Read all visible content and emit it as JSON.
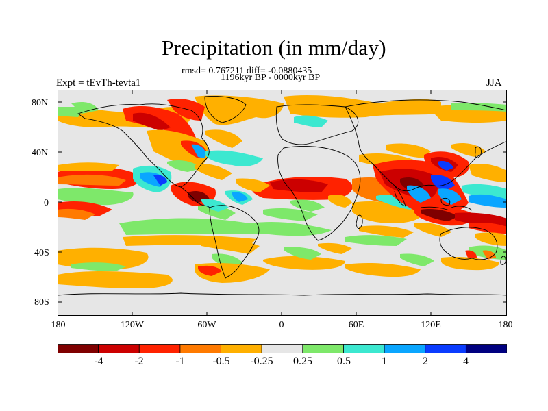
{
  "figure": {
    "title": "Precipitation (in mm/day)",
    "stats_line": "rmsd= 0.767211 diff= -0.0880435",
    "period_line": "1196kyr BP - 0000kyr BP",
    "experiment": "Expt = tEvTh-tevta1",
    "season": "JJA"
  },
  "axes": {
    "lat_ticks": [
      "80N",
      "40N",
      "0",
      "40S",
      "80S"
    ],
    "lon_ticks": [
      "180",
      "120W",
      "60W",
      "0",
      "60E",
      "120E",
      "180"
    ]
  },
  "colorbar": {
    "labels": [
      "-4",
      "-2",
      "-1",
      "-0.5",
      "-0.25",
      "0.25",
      "0.5",
      "1",
      "2",
      "4"
    ],
    "colors": [
      "#7f0000",
      "#cc0000",
      "#ff2200",
      "#ff7a00",
      "#ffb000",
      "#e6e6e6",
      "#7ee86a",
      "#3ce8d0",
      "#0aa6ff",
      "#0a3cff",
      "#000080"
    ]
  },
  "colors": {
    "land_outline": "#000000",
    "background": "#e6e6e6"
  }
}
